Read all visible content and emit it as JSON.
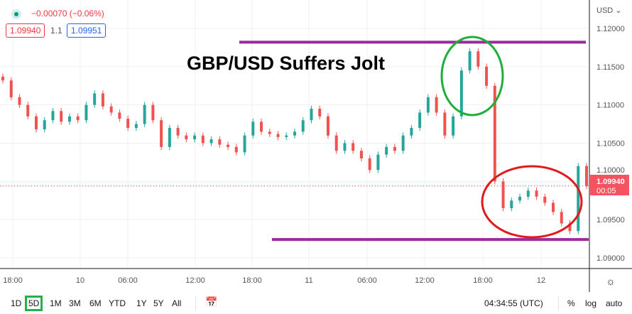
{
  "legend": {
    "change": "−0.00070 (−0.06%)",
    "bid": "1.09940",
    "spread": "1.1",
    "ask": "1.09951"
  },
  "currency": "USD ⌄",
  "annotation_title": "GBP/USD Suffers Jolt",
  "last_price": {
    "value": "1.09940",
    "countdown": "00:05"
  },
  "chart_data": {
    "type": "candlestick",
    "title": "GBP/USD Suffers Jolt",
    "ylim": [
      1.088,
      1.1215
    ],
    "y_ticks": [
      "1.12000",
      "1.11500",
      "1.11000",
      "1.10500",
      "1.10000",
      "1.09500",
      "1.09000"
    ],
    "x_ticks": [
      "18:00",
      "10",
      "06:00",
      "12:00",
      "18:00",
      "11",
      "06:00",
      "12:00",
      "18:00",
      "12"
    ],
    "closes": [
      1.1132,
      1.111,
      1.11,
      1.1085,
      1.1068,
      1.108,
      1.1092,
      1.1078,
      1.1085,
      1.108,
      1.11,
      1.1115,
      1.1098,
      1.109,
      1.1082,
      1.107,
      1.1075,
      1.11,
      1.108,
      1.1045,
      1.107,
      1.106,
      1.1055,
      1.106,
      1.105,
      1.1055,
      1.1048,
      1.1045,
      1.1038,
      1.106,
      1.1078,
      1.1065,
      1.1062,
      1.1058,
      1.106,
      1.1065,
      1.108,
      1.1095,
      1.1085,
      1.106,
      1.104,
      1.105,
      1.104,
      1.103,
      1.1015,
      1.1035,
      1.1045,
      1.104,
      1.106,
      1.107,
      1.109,
      1.111,
      1.109,
      1.106,
      1.1085,
      1.1145,
      1.117,
      1.115,
      1.1125,
      1.1,
      1.0965,
      1.0975,
      1.098,
      1.0988,
      1.098,
      1.0972,
      1.096,
      1.0945,
      1.0935,
      1.102,
      1.0994
    ],
    "resistance": 1.1182,
    "support": 1.0924,
    "up_color": "#26a69a",
    "down_color": "#ef5350"
  },
  "range_buttons": [
    "1D",
    "5D",
    "1M",
    "3M",
    "6M",
    "YTD",
    "1Y",
    "5Y",
    "All"
  ],
  "selected_range": "5D",
  "clock": "04:34:55 (UTC)",
  "scale_options": [
    "%",
    "log",
    "auto"
  ]
}
